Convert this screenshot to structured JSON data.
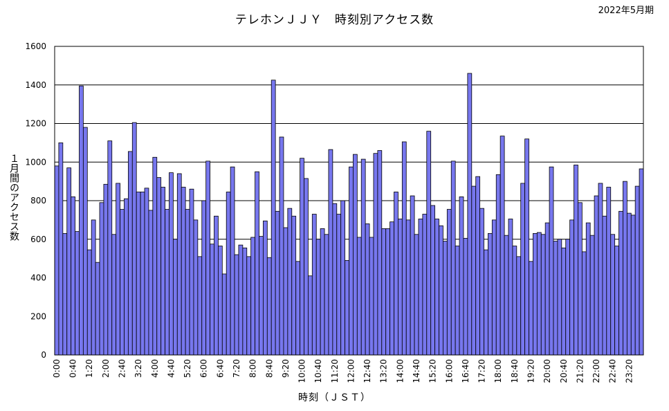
{
  "chart_data": {
    "type": "bar",
    "title": "テレホンＪＪＹ　時刻別アクセス数",
    "period": "2022年5月期",
    "xlabel": "時刻（ＪＳＴ）",
    "ylabel": "１月間のアクセス数",
    "ylim": [
      0,
      1600
    ],
    "yticks": [
      0,
      200,
      400,
      600,
      800,
      1000,
      1200,
      1400,
      1600
    ],
    "grid": true,
    "bar_color": "#7777ee",
    "bar_edge": "#000000",
    "x_tick_labels": [
      "0:00",
      "0:40",
      "1:20",
      "2:00",
      "2:40",
      "3:20",
      "4:00",
      "4:40",
      "5:20",
      "6:00",
      "6:40",
      "7:20",
      "8:00",
      "8:40",
      "9:20",
      "10:00",
      "10:40",
      "11:20",
      "12:00",
      "12:40",
      "13:20",
      "14:00",
      "14:40",
      "15:20",
      "16:00",
      "16:40",
      "17:20",
      "18:00",
      "18:40",
      "19:20",
      "20:00",
      "20:40",
      "21:20",
      "22:00",
      "22:40",
      "23:20"
    ],
    "values": [
      980,
      1100,
      630,
      970,
      820,
      640,
      1395,
      1180,
      545,
      700,
      480,
      790,
      885,
      1110,
      625,
      890,
      755,
      810,
      1055,
      1205,
      845,
      845,
      865,
      750,
      1025,
      920,
      870,
      755,
      945,
      600,
      940,
      870,
      755,
      860,
      700,
      510,
      800,
      1005,
      575,
      720,
      565,
      420,
      845,
      975,
      520,
      570,
      555,
      510,
      610,
      950,
      615,
      695,
      505,
      1425,
      745,
      1130,
      660,
      760,
      720,
      485,
      1020,
      915,
      410,
      730,
      600,
      655,
      625,
      1065,
      785,
      730,
      800,
      490,
      975,
      1040,
      610,
      1015,
      680,
      610,
      1045,
      1060,
      655,
      655,
      690,
      845,
      705,
      1105,
      700,
      825,
      625,
      705,
      730,
      1160,
      775,
      705,
      670,
      590,
      755,
      1005,
      565,
      820,
      605,
      1460,
      875,
      925,
      760,
      545,
      630,
      700,
      935,
      1135,
      620,
      705,
      565,
      510,
      890,
      1120,
      485,
      630,
      635,
      625,
      685,
      975,
      590,
      600,
      555,
      600,
      700,
      985,
      790,
      535,
      685,
      620,
      825,
      890,
      720,
      870,
      625,
      565,
      745,
      900,
      735,
      725,
      875,
      965
    ]
  }
}
